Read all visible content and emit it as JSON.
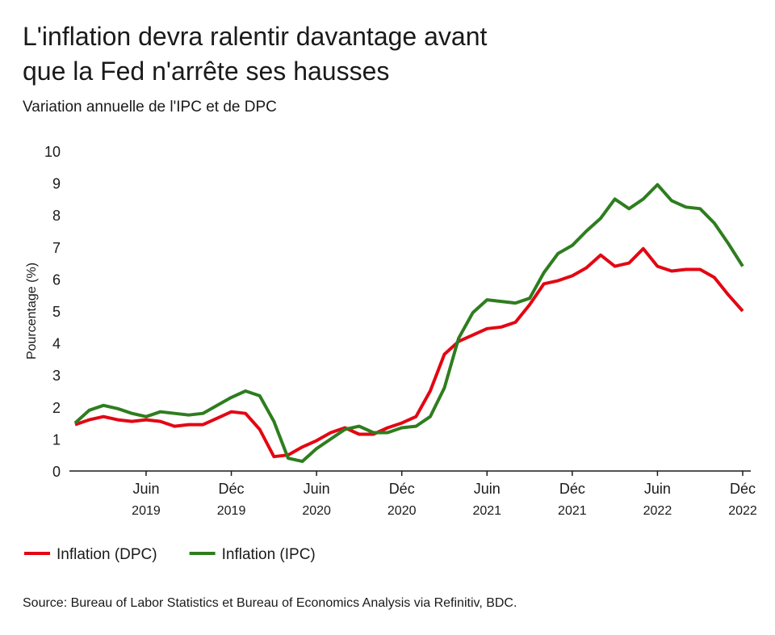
{
  "chart_data": {
    "type": "line",
    "title": [
      "L'inflation devra ralentir davantage avant",
      "que la Fed n'arrête ses hausses"
    ],
    "subtitle": "Variation annuelle de l'IPC et de DPC",
    "ylabel": "Pourcentage (%)",
    "source": "Source: Bureau of Labor Statistics et Bureau of Economics Analysis via Refinitiv, BDC.",
    "categories": [
      null,
      null,
      null,
      null,
      null,
      "Juin 2019",
      null,
      null,
      null,
      null,
      null,
      "Déc 2019",
      null,
      null,
      null,
      null,
      null,
      "Juin 2020",
      null,
      null,
      null,
      null,
      null,
      "Déc 2020",
      null,
      null,
      null,
      null,
      null,
      "Juin 2021",
      null,
      null,
      null,
      null,
      null,
      "Déc 2021",
      null,
      null,
      null,
      null,
      null,
      "Juin 2022",
      null,
      null,
      null,
      null,
      null,
      "Déc 2022"
    ],
    "series": [
      {
        "name": "Inflation (DPC)",
        "color": "#e30613",
        "values": [
          1.45,
          1.6,
          1.7,
          1.6,
          1.55,
          1.6,
          1.55,
          1.4,
          1.45,
          1.45,
          1.65,
          1.85,
          1.8,
          1.3,
          0.45,
          0.5,
          0.75,
          0.95,
          1.2,
          1.35,
          1.15,
          1.15,
          1.35,
          1.5,
          1.7,
          2.5,
          3.65,
          4.05,
          4.25,
          4.45,
          4.5,
          4.65,
          5.2,
          5.85,
          5.95,
          6.1,
          6.35,
          6.75,
          6.4,
          6.5,
          6.95,
          6.4,
          6.25,
          6.3,
          6.3,
          6.05,
          5.5,
          5.0
        ]
      },
      {
        "name": "Inflation (IPC)",
        "color": "#2e7d1f",
        "values": [
          1.5,
          1.9,
          2.05,
          1.95,
          1.8,
          1.7,
          1.85,
          1.8,
          1.75,
          1.8,
          2.05,
          2.3,
          2.5,
          2.35,
          1.55,
          0.4,
          0.3,
          0.7,
          1.0,
          1.3,
          1.4,
          1.2,
          1.2,
          1.35,
          1.4,
          1.7,
          2.6,
          4.15,
          4.95,
          5.35,
          5.3,
          5.25,
          5.4,
          6.2,
          6.8,
          7.05,
          7.5,
          7.9,
          8.5,
          8.2,
          8.5,
          8.95,
          8.45,
          8.25,
          8.2,
          7.75,
          7.1,
          6.4
        ]
      }
    ],
    "ylim": [
      0,
      10
    ],
    "yticks": [
      0,
      1,
      2,
      3,
      4,
      5,
      6,
      7,
      8,
      9,
      10
    ],
    "grid": false,
    "legend": "bottom"
  }
}
